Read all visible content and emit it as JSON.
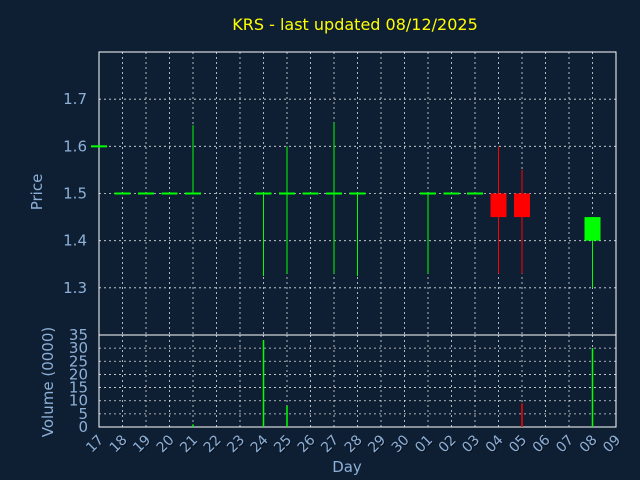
{
  "title": "KRS - last updated 08/12/2025",
  "colors": {
    "background": "#0f1f33",
    "title": "#ffff00",
    "axis_text": "#8db0d8",
    "up": "#00ff00",
    "down": "#ff0000",
    "flat": "#00ff00"
  },
  "chart_data": [
    {
      "type": "candlestick",
      "ylabel": "Price",
      "ylim": [
        1.2,
        1.8
      ],
      "yticks": [
        "1.3",
        "1.4",
        "1.5",
        "1.6",
        "1.7"
      ],
      "grid": true,
      "x_categories": [
        "17",
        "18",
        "19",
        "20",
        "21",
        "22",
        "23",
        "24",
        "25",
        "26",
        "27",
        "28",
        "29",
        "30",
        "01",
        "02",
        "03",
        "04",
        "05",
        "06",
        "07",
        "08",
        "09"
      ],
      "candles": [
        {
          "x": "17",
          "open": 1.6,
          "high": 1.6,
          "low": 1.6,
          "close": 1.6
        },
        {
          "x": "18",
          "open": 1.5,
          "high": 1.5,
          "low": 1.5,
          "close": 1.5
        },
        {
          "x": "19",
          "open": 1.5,
          "high": 1.5,
          "low": 1.5,
          "close": 1.5
        },
        {
          "x": "20",
          "open": 1.5,
          "high": 1.5,
          "low": 1.5,
          "close": 1.5
        },
        {
          "x": "21",
          "open": 1.5,
          "high": 1.645,
          "low": 1.5,
          "close": 1.5
        },
        {
          "x": "24",
          "open": 1.5,
          "high": 1.5,
          "low": 1.325,
          "close": 1.5
        },
        {
          "x": "25",
          "open": 1.5,
          "high": 1.6,
          "low": 1.33,
          "close": 1.5
        },
        {
          "x": "26",
          "open": 1.5,
          "high": 1.5,
          "low": 1.5,
          "close": 1.5
        },
        {
          "x": "27",
          "open": 1.5,
          "high": 1.65,
          "low": 1.33,
          "close": 1.5
        },
        {
          "x": "28",
          "open": 1.5,
          "high": 1.5,
          "low": 1.325,
          "close": 1.5
        },
        {
          "x": "01",
          "open": 1.5,
          "high": 1.5,
          "low": 1.33,
          "close": 1.5
        },
        {
          "x": "02",
          "open": 1.5,
          "high": 1.5,
          "low": 1.5,
          "close": 1.5
        },
        {
          "x": "03",
          "open": 1.5,
          "high": 1.5,
          "low": 1.5,
          "close": 1.5
        },
        {
          "x": "04",
          "open": 1.5,
          "high": 1.6,
          "low": 1.33,
          "close": 1.45
        },
        {
          "x": "05",
          "open": 1.5,
          "high": 1.55,
          "low": 1.33,
          "close": 1.45
        },
        {
          "x": "08",
          "open": 1.4,
          "high": 1.45,
          "low": 1.3,
          "close": 1.45
        }
      ]
    },
    {
      "type": "bar",
      "ylabel": "Volume (0000)",
      "xlabel": "Day",
      "ylim": [
        0,
        35
      ],
      "yticks": [
        "0",
        "5",
        "10",
        "15",
        "20",
        "25",
        "30",
        "35"
      ],
      "grid": true,
      "x_categories": [
        "17",
        "18",
        "19",
        "20",
        "21",
        "22",
        "23",
        "24",
        "25",
        "26",
        "27",
        "28",
        "29",
        "30",
        "01",
        "02",
        "03",
        "04",
        "05",
        "06",
        "07",
        "08",
        "09"
      ],
      "bars": [
        {
          "x": "21",
          "value": 1,
          "direction": "up"
        },
        {
          "x": "24",
          "value": 33,
          "direction": "up"
        },
        {
          "x": "25",
          "value": 8,
          "direction": "up"
        },
        {
          "x": "05",
          "value": 9,
          "direction": "down"
        },
        {
          "x": "08",
          "value": 30,
          "direction": "up"
        }
      ]
    }
  ]
}
